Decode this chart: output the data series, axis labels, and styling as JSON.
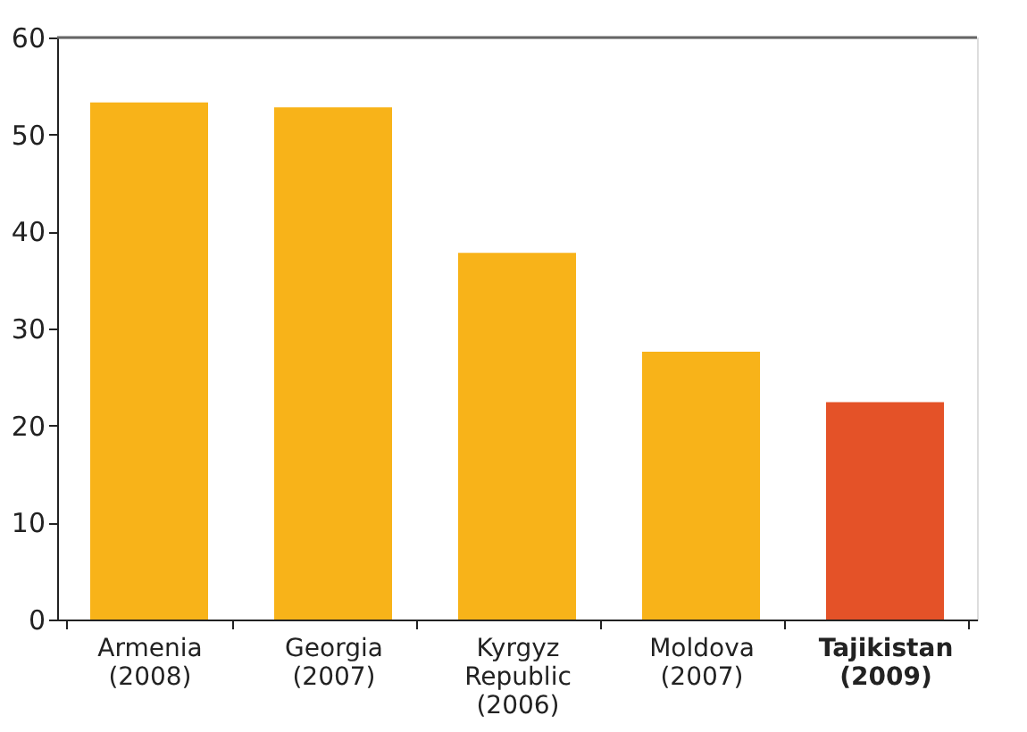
{
  "chart_data": {
    "type": "bar",
    "categories": [
      "Armenia\n(2008)",
      "Georgia\n(2007)",
      "Kyrgyz\nRepublic\n(2006)",
      "Moldova\n(2007)",
      "Tajikistan\n(2009)"
    ],
    "values": [
      53.3,
      52.8,
      37.8,
      27.6,
      22.4
    ],
    "colors": [
      "#f8b319",
      "#f8b319",
      "#f8b319",
      "#f8b319",
      "#e45228"
    ],
    "ylim": [
      0,
      60
    ],
    "yticks": [
      0,
      10,
      20,
      30,
      40,
      50,
      60
    ],
    "grid": false
  }
}
